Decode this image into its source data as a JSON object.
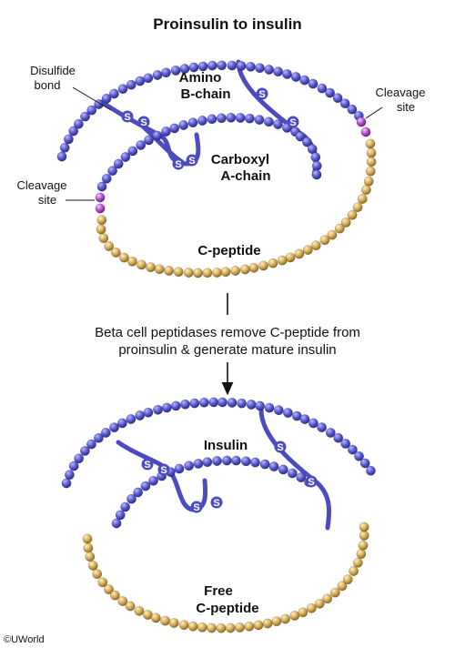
{
  "title": "Proinsulin to insulin",
  "labels": {
    "disulfide_bond": [
      "Disulfide",
      "bond"
    ],
    "amino_b_chain": [
      "Amino",
      "B-chain"
    ],
    "carboxyl_a_chain": [
      "Carboxyl",
      "A-chain"
    ],
    "cleavage_site_right": [
      "Cleavage",
      "site"
    ],
    "cleavage_site_left": [
      "Cleavage",
      "site"
    ],
    "c_peptide": "C-peptide",
    "step": [
      "Beta cell peptidases remove C-peptide from",
      "proinsulin & generate mature insulin"
    ],
    "insulin": "Insulin",
    "free_c_peptide": [
      "Free",
      "C-peptide"
    ],
    "sulfur": "S",
    "copyright": "©UWorld"
  },
  "colors": {
    "chain_blue": "#5555cc",
    "c_peptide_gold": "#d4aa55",
    "cleavage_magenta": "#b44fc8",
    "bond_blue": "#4c4cc0",
    "arrow": "#111111"
  }
}
